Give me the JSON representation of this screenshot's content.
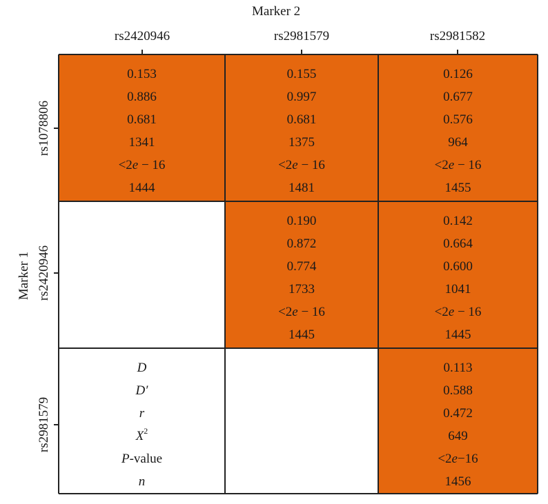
{
  "chart_data": {
    "type": "table",
    "column_axis_title": "Marker 2",
    "row_axis_title": "Marker 1",
    "columns": [
      "rs2420946",
      "rs2981579",
      "rs2981582"
    ],
    "rows": [
      "rs1078806",
      "rs2420946",
      "rs2981579"
    ],
    "legend": {
      "labels": [
        "D",
        "D′",
        "r",
        "X²",
        "P-value",
        "n"
      ]
    },
    "cells": [
      [
        {
          "D": "0.153",
          "Dprime": "0.886",
          "r": "0.681",
          "X2": "1341",
          "p": "<2e − 16",
          "n": "1444"
        },
        {
          "D": "0.155",
          "Dprime": "0.997",
          "r": "0.681",
          "X2": "1375",
          "p": "<2e − 16",
          "n": "1481"
        },
        {
          "D": "0.126",
          "Dprime": "0.677",
          "r": "0.576",
          "X2": "964",
          "p": "<2e − 16",
          "n": "1455"
        }
      ],
      [
        null,
        {
          "D": "0.190",
          "Dprime": "0.872",
          "r": "0.774",
          "X2": "1733",
          "p": "<2e − 16",
          "n": "1445"
        },
        {
          "D": "0.142",
          "Dprime": "0.664",
          "r": "0.600",
          "X2": "1041",
          "p": "<2e − 16",
          "n": "1445"
        }
      ],
      [
        null,
        null,
        {
          "D": "0.113",
          "Dprime": "0.588",
          "r": "0.472",
          "X2": "649",
          "p": "<2e−16",
          "n": "1456"
        }
      ]
    ],
    "fill_color": "#e5670e",
    "grid": true
  }
}
